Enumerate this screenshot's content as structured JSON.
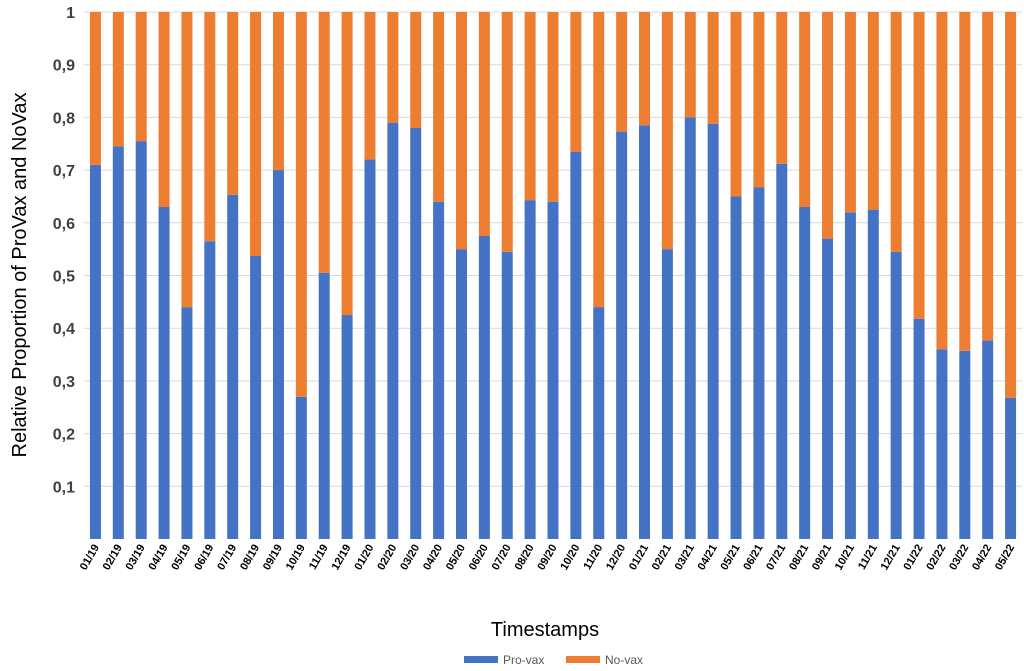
{
  "chart_data": {
    "type": "bar",
    "stacked": true,
    "title": "",
    "xlabel": "Timestamps",
    "ylabel": "Relative Proportion of ProVax and NoVax",
    "ylim": [
      0,
      1
    ],
    "yticks": [
      "0,1",
      "0,2",
      "0,3",
      "0,4",
      "0,5",
      "0,6",
      "0,7",
      "0,8",
      "0,9",
      "1"
    ],
    "grid": true,
    "legend_position": "bottom",
    "categories": [
      "01/19",
      "02/19",
      "03/19",
      "04/19",
      "05/19",
      "06/19",
      "07/19",
      "08/19",
      "09/19",
      "10/19",
      "11/19",
      "12/19",
      "01/20",
      "02/20",
      "03/20",
      "04/20",
      "05/20",
      "06/20",
      "07/20",
      "08/20",
      "09/20",
      "10/20",
      "11/20",
      "12/20",
      "01/21",
      "02/21",
      "03/21",
      "04/21",
      "05/21",
      "06/21",
      "07/21",
      "08/21",
      "09/21",
      "10/21",
      "11/21",
      "12/21",
      "01/22",
      "02/22",
      "03/22",
      "04/22",
      "05/22"
    ],
    "series": [
      {
        "name": "Pro-vax",
        "color": "#4472C4",
        "values": [
          0.71,
          0.745,
          0.755,
          0.63,
          0.44,
          0.565,
          0.653,
          0.537,
          0.7,
          0.27,
          0.505,
          0.425,
          0.72,
          0.79,
          0.78,
          0.64,
          0.55,
          0.575,
          0.545,
          0.643,
          0.64,
          0.735,
          0.44,
          0.773,
          0.785,
          0.55,
          0.8,
          0.788,
          0.65,
          0.667,
          0.712,
          0.63,
          0.57,
          0.62,
          0.625,
          0.545,
          0.418,
          0.36,
          0.357,
          0.377,
          0.268
        ]
      },
      {
        "name": "No-vax",
        "color": "#ED7D31",
        "values": [
          0.29,
          0.255,
          0.245,
          0.37,
          0.56,
          0.435,
          0.347,
          0.463,
          0.3,
          0.73,
          0.495,
          0.575,
          0.28,
          0.21,
          0.22,
          0.36,
          0.45,
          0.425,
          0.455,
          0.357,
          0.36,
          0.265,
          0.56,
          0.227,
          0.215,
          0.45,
          0.2,
          0.212,
          0.35,
          0.333,
          0.288,
          0.37,
          0.43,
          0.38,
          0.375,
          0.455,
          0.582,
          0.64,
          0.643,
          0.623,
          0.732
        ]
      }
    ]
  }
}
